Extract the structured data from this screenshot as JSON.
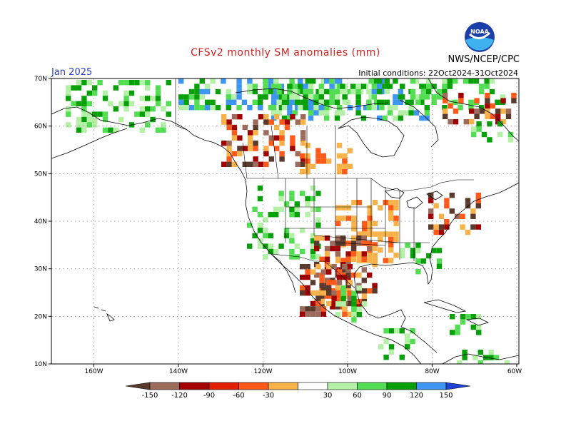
{
  "header": {
    "title": "CFSv2 monthly SM anomalies (mm)",
    "month": "Jan 2025",
    "initial_conditions": "Initial conditions: 22Oct2024-31Oct2024",
    "agency": "NWS/NCEP/CPC",
    "logo_text": "NOAA"
  },
  "map": {
    "lat_labels": [
      "70N",
      "60N",
      "50N",
      "40N",
      "30N",
      "20N",
      "10N"
    ],
    "lon_labels": [
      "160W",
      "140W",
      "120W",
      "100W",
      "80W",
      "60W"
    ]
  },
  "colorbar": {
    "labels": [
      "-150",
      "-120",
      "-90",
      "-60",
      "-30",
      "30",
      "60",
      "90",
      "120",
      "150"
    ],
    "colors": [
      "#5b3a2e",
      "#9c6b5b",
      "#a00000",
      "#e02000",
      "#ff5a1a",
      "#f7b24a",
      "#ffffff",
      "#b4f0a6",
      "#52dd52",
      "#08a008",
      "#3c96f2",
      "#1d44d6"
    ]
  },
  "colors": {
    "dry_strong": "#5b3a2e",
    "dry_med": "#a00000",
    "dry_light": "#f7b24a",
    "wet_light": "#b4f0a6",
    "wet_med": "#52dd52",
    "wet_strong": "#08a008",
    "wet_extreme": "#3c96f2"
  }
}
